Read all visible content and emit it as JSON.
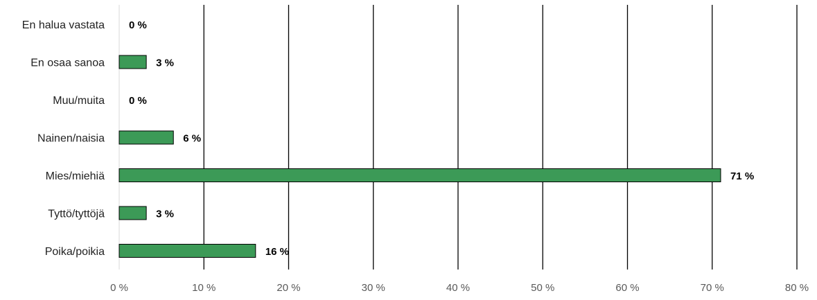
{
  "chart_data": {
    "type": "bar",
    "orientation": "horizontal",
    "categories": [
      "En halua vastata",
      "En osaa sanoa",
      "Muu/muita",
      "Nainen/naisia",
      "Mies/miehiä",
      "Tyttö/tyttöjä",
      "Poika/poikia"
    ],
    "values": [
      0,
      3.2,
      0,
      6.4,
      71,
      3.2,
      16.1
    ],
    "data_labels": [
      "0 %",
      "3 %",
      "0 %",
      "6 %",
      "71 %",
      "3 %",
      "16 %"
    ],
    "x_ticks": [
      "0 %",
      "10 %",
      "20 %",
      "30 %",
      "40 %",
      "50 %",
      "60 %",
      "70 %",
      "80 %"
    ],
    "xlim": [
      0,
      80
    ],
    "title": "",
    "xlabel": "",
    "ylabel": "",
    "grid": "vertical",
    "legend": "none",
    "bar_color": "#3c9a57",
    "bar_edge_color": "#000000",
    "grid_color": "#000000"
  }
}
